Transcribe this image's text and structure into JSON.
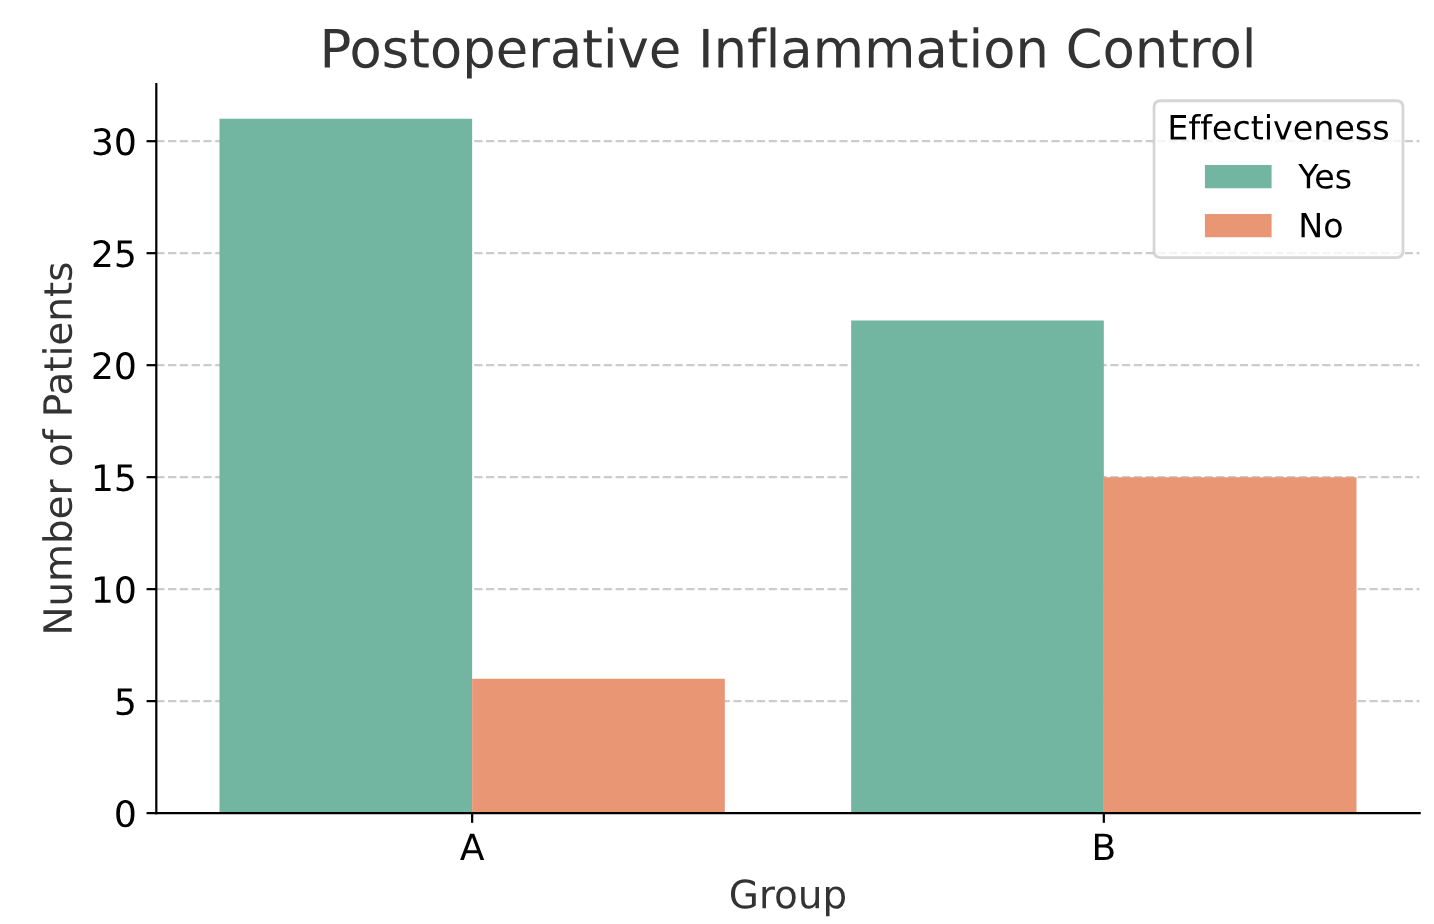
{
  "chart_data": {
    "type": "bar",
    "title": "Postoperative Inflammation Control",
    "xlabel": "Group",
    "ylabel": "Number of Patients",
    "legend_title": "Effectiveness",
    "categories": [
      "A",
      "B"
    ],
    "series": [
      {
        "name": "Yes",
        "color": "#72b6a1",
        "values": [
          31,
          22
        ]
      },
      {
        "name": "No",
        "color": "#e99675",
        "values": [
          6,
          15
        ]
      }
    ],
    "ylim": [
      0,
      32.55
    ],
    "yticks": [
      0,
      5,
      10,
      15,
      20,
      25,
      30
    ],
    "grid": "y",
    "legend": "top right"
  }
}
